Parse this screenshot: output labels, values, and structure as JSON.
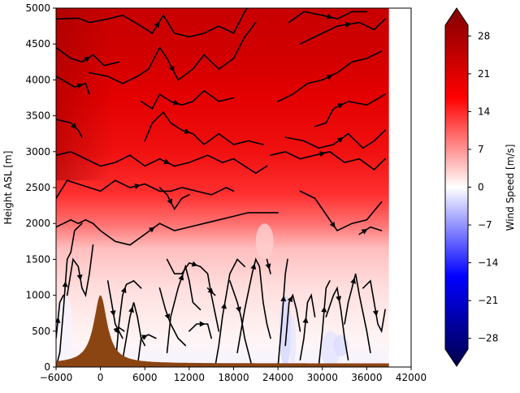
{
  "chart_data": {
    "type": "heatmap",
    "title": "",
    "xlabel": "",
    "ylabel": "Height ASL [m]",
    "xlim": [
      -6000,
      42000
    ],
    "ylim": [
      0,
      5000
    ],
    "x_ticks": [
      -6000,
      0,
      6000,
      12000,
      18000,
      24000,
      30000,
      36000,
      42000
    ],
    "x_tick_labels": [
      "−6000",
      "0",
      "6000",
      "12000",
      "18000",
      "24000",
      "30000",
      "36000",
      "42000"
    ],
    "y_ticks": [
      0,
      500,
      1000,
      1500,
      2000,
      2500,
      3000,
      3500,
      4000,
      4500,
      5000
    ],
    "y_tick_labels": [
      "0",
      "500",
      "1000",
      "1500",
      "2000",
      "2500",
      "3000",
      "3500",
      "4000",
      "4500",
      "5000"
    ],
    "data_x_extent": [
      -6000,
      39000
    ],
    "grid": false,
    "colorbar": {
      "label": "Wind Speed [m/s]",
      "range": [
        -30,
        30
      ],
      "colormap": "seismic",
      "extend": "both",
      "ticks": [
        -28,
        -21,
        -14,
        -7,
        0,
        7,
        14,
        21,
        28
      ],
      "tick_labels": [
        "−28",
        "−21",
        "−14",
        "−7",
        "0",
        "7",
        "14",
        "21",
        "28"
      ]
    },
    "terrain": {
      "color": "#8B4513",
      "peak_x": 0,
      "peak_height": 1000,
      "base_height": 50
    },
    "wind_speed_profile": [
      {
        "height": 0,
        "speed": 0
      },
      {
        "height": 500,
        "speed": 2
      },
      {
        "height": 1000,
        "speed": 4
      },
      {
        "height": 1500,
        "speed": 5
      },
      {
        "height": 2000,
        "speed": 10
      },
      {
        "height": 2500,
        "speed": 15
      },
      {
        "height": 3000,
        "speed": 18
      },
      {
        "height": 3500,
        "speed": 19
      },
      {
        "height": 4000,
        "speed": 20
      },
      {
        "height": 4500,
        "speed": 22
      },
      {
        "height": 5000,
        "speed": 24
      }
    ],
    "streamlines": "black"
  }
}
